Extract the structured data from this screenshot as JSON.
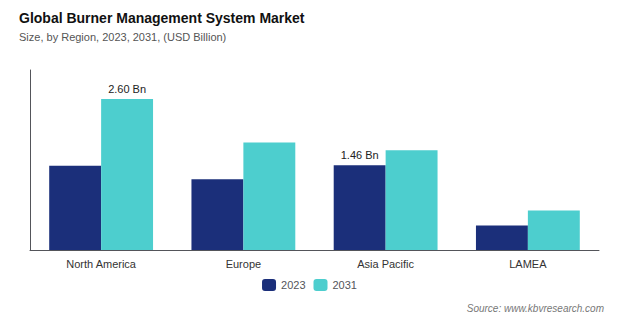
{
  "chart_data": {
    "type": "bar",
    "title": "Global Burner Management System Market",
    "subtitle": "Size, by Region, 2023, 2031, (USD Billion)",
    "source": "Source: www.kbvresearch.com",
    "categories": [
      "North America",
      "Europe",
      "Asia Pacific",
      "LAMEA"
    ],
    "series": [
      {
        "name": "2023",
        "color": "#1b2f7a",
        "values": [
          1.45,
          1.22,
          1.46,
          0.42
        ]
      },
      {
        "name": "2031",
        "color": "#4dcece",
        "values": [
          2.6,
          1.85,
          1.72,
          0.68
        ]
      }
    ],
    "annotations": [
      {
        "text": "2.60 Bn",
        "series": "2031",
        "category": "North America"
      },
      {
        "text": "1.46 Bn",
        "series": "2023",
        "category": "Asia Pacific"
      }
    ],
    "ylim": [
      0,
      3.1
    ],
    "tick_labels": "x",
    "grid": false,
    "legend": "bottom"
  }
}
